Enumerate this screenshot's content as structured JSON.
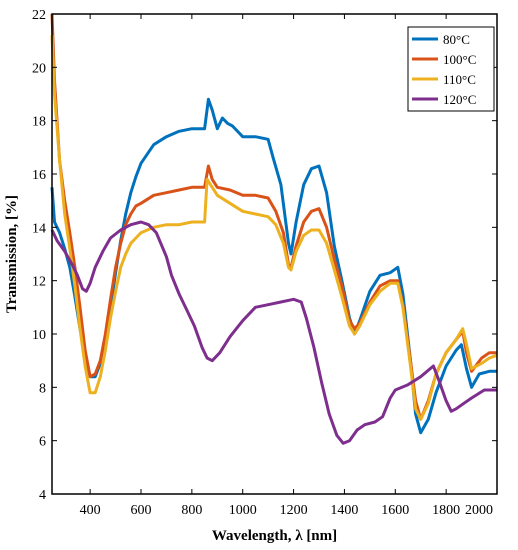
{
  "chart_data": {
    "type": "line",
    "title": "",
    "xlabel": "Wavelength, λ [nm]",
    "ylabel": "Transmission, [%]",
    "xlim": [
      250,
      2000
    ],
    "ylim": [
      4,
      22
    ],
    "xticks": [
      400,
      600,
      800,
      1000,
      1200,
      1400,
      1600,
      1800,
      2000
    ],
    "yticks": [
      4,
      6,
      8,
      10,
      12,
      14,
      16,
      18,
      20,
      22
    ],
    "grid": false,
    "legend_position": "top-right",
    "series": [
      {
        "name": "80°C",
        "color": "#0072BD",
        "points": [
          [
            250,
            15.5
          ],
          [
            260,
            14.2
          ],
          [
            280,
            13.8
          ],
          [
            300,
            13.2
          ],
          [
            320,
            12.5
          ],
          [
            340,
            11.4
          ],
          [
            360,
            10.2
          ],
          [
            380,
            9.2
          ],
          [
            400,
            8.4
          ],
          [
            420,
            8.4
          ],
          [
            440,
            8.9
          ],
          [
            460,
            9.8
          ],
          [
            480,
            11.0
          ],
          [
            500,
            12.3
          ],
          [
            520,
            13.5
          ],
          [
            540,
            14.5
          ],
          [
            560,
            15.3
          ],
          [
            580,
            15.9
          ],
          [
            600,
            16.4
          ],
          [
            650,
            17.1
          ],
          [
            700,
            17.4
          ],
          [
            750,
            17.6
          ],
          [
            800,
            17.7
          ],
          [
            850,
            17.7
          ],
          [
            865,
            18.8
          ],
          [
            880,
            18.4
          ],
          [
            900,
            17.7
          ],
          [
            920,
            18.1
          ],
          [
            940,
            17.9
          ],
          [
            960,
            17.8
          ],
          [
            1000,
            17.4
          ],
          [
            1050,
            17.4
          ],
          [
            1100,
            17.3
          ],
          [
            1120,
            16.6
          ],
          [
            1150,
            15.6
          ],
          [
            1180,
            13.4
          ],
          [
            1190,
            13.0
          ],
          [
            1210,
            14.2
          ],
          [
            1240,
            15.6
          ],
          [
            1270,
            16.2
          ],
          [
            1300,
            16.3
          ],
          [
            1330,
            15.3
          ],
          [
            1360,
            13.3
          ],
          [
            1390,
            12.0
          ],
          [
            1420,
            10.6
          ],
          [
            1440,
            10.0
          ],
          [
            1460,
            10.5
          ],
          [
            1500,
            11.6
          ],
          [
            1540,
            12.2
          ],
          [
            1580,
            12.3
          ],
          [
            1610,
            12.5
          ],
          [
            1630,
            11.5
          ],
          [
            1660,
            9.0
          ],
          [
            1680,
            7.0
          ],
          [
            1700,
            6.3
          ],
          [
            1730,
            6.8
          ],
          [
            1760,
            7.8
          ],
          [
            1800,
            8.8
          ],
          [
            1840,
            9.4
          ],
          [
            1860,
            9.6
          ],
          [
            1880,
            8.7
          ],
          [
            1900,
            8.0
          ],
          [
            1930,
            8.5
          ],
          [
            1970,
            8.6
          ],
          [
            2000,
            8.6
          ]
        ]
      },
      {
        "name": "100°C",
        "color": "#D95319",
        "points": [
          [
            250,
            22.0
          ],
          [
            260,
            19.5
          ],
          [
            280,
            16.5
          ],
          [
            300,
            15.0
          ],
          [
            320,
            13.8
          ],
          [
            340,
            12.5
          ],
          [
            360,
            11.0
          ],
          [
            380,
            9.4
          ],
          [
            400,
            8.4
          ],
          [
            420,
            8.5
          ],
          [
            440,
            9.0
          ],
          [
            460,
            10.0
          ],
          [
            480,
            11.3
          ],
          [
            500,
            12.5
          ],
          [
            520,
            13.4
          ],
          [
            540,
            14.1
          ],
          [
            560,
            14.5
          ],
          [
            580,
            14.8
          ],
          [
            600,
            14.9
          ],
          [
            650,
            15.2
          ],
          [
            700,
            15.3
          ],
          [
            750,
            15.4
          ],
          [
            800,
            15.5
          ],
          [
            850,
            15.5
          ],
          [
            865,
            16.3
          ],
          [
            880,
            15.8
          ],
          [
            900,
            15.5
          ],
          [
            950,
            15.4
          ],
          [
            1000,
            15.2
          ],
          [
            1050,
            15.2
          ],
          [
            1100,
            15.1
          ],
          [
            1130,
            14.6
          ],
          [
            1160,
            13.8
          ],
          [
            1180,
            12.6
          ],
          [
            1190,
            12.5
          ],
          [
            1210,
            13.3
          ],
          [
            1240,
            14.2
          ],
          [
            1270,
            14.6
          ],
          [
            1300,
            14.7
          ],
          [
            1330,
            14.0
          ],
          [
            1360,
            12.8
          ],
          [
            1390,
            11.8
          ],
          [
            1420,
            10.5
          ],
          [
            1440,
            10.2
          ],
          [
            1460,
            10.4
          ],
          [
            1500,
            11.2
          ],
          [
            1540,
            11.8
          ],
          [
            1580,
            12.0
          ],
          [
            1610,
            12.0
          ],
          [
            1630,
            11.1
          ],
          [
            1660,
            9.0
          ],
          [
            1680,
            7.5
          ],
          [
            1700,
            6.8
          ],
          [
            1730,
            7.5
          ],
          [
            1760,
            8.5
          ],
          [
            1800,
            9.3
          ],
          [
            1840,
            9.8
          ],
          [
            1865,
            10.1
          ],
          [
            1880,
            9.3
          ],
          [
            1900,
            8.6
          ],
          [
            1940,
            9.1
          ],
          [
            1970,
            9.3
          ],
          [
            2000,
            9.3
          ]
        ]
      },
      {
        "name": "110°C",
        "color": "#EDB120",
        "points": [
          [
            250,
            21.2
          ],
          [
            260,
            19.0
          ],
          [
            280,
            16.5
          ],
          [
            300,
            14.5
          ],
          [
            320,
            13.2
          ],
          [
            340,
            11.8
          ],
          [
            360,
            10.2
          ],
          [
            380,
            8.8
          ],
          [
            400,
            7.8
          ],
          [
            420,
            7.8
          ],
          [
            440,
            8.4
          ],
          [
            460,
            9.4
          ],
          [
            480,
            10.6
          ],
          [
            500,
            11.6
          ],
          [
            520,
            12.5
          ],
          [
            540,
            13.0
          ],
          [
            560,
            13.4
          ],
          [
            580,
            13.6
          ],
          [
            600,
            13.8
          ],
          [
            650,
            14.0
          ],
          [
            700,
            14.1
          ],
          [
            750,
            14.1
          ],
          [
            800,
            14.2
          ],
          [
            850,
            14.2
          ],
          [
            860,
            15.8
          ],
          [
            880,
            15.5
          ],
          [
            900,
            15.2
          ],
          [
            950,
            14.9
          ],
          [
            1000,
            14.6
          ],
          [
            1050,
            14.5
          ],
          [
            1100,
            14.4
          ],
          [
            1130,
            14.1
          ],
          [
            1160,
            13.4
          ],
          [
            1180,
            12.5
          ],
          [
            1190,
            12.4
          ],
          [
            1210,
            13.1
          ],
          [
            1240,
            13.7
          ],
          [
            1270,
            13.9
          ],
          [
            1300,
            13.9
          ],
          [
            1330,
            13.4
          ],
          [
            1360,
            12.4
          ],
          [
            1390,
            11.4
          ],
          [
            1420,
            10.3
          ],
          [
            1440,
            10.0
          ],
          [
            1460,
            10.3
          ],
          [
            1500,
            11.1
          ],
          [
            1540,
            11.6
          ],
          [
            1580,
            11.9
          ],
          [
            1610,
            11.9
          ],
          [
            1630,
            11.0
          ],
          [
            1660,
            8.8
          ],
          [
            1680,
            7.2
          ],
          [
            1700,
            6.8
          ],
          [
            1730,
            7.4
          ],
          [
            1760,
            8.5
          ],
          [
            1800,
            9.3
          ],
          [
            1840,
            9.8
          ],
          [
            1865,
            10.2
          ],
          [
            1880,
            9.6
          ],
          [
            1900,
            8.7
          ],
          [
            1940,
            8.9
          ],
          [
            1970,
            9.1
          ],
          [
            2000,
            9.2
          ]
        ]
      },
      {
        "name": "120°C",
        "color": "#7E2F8E",
        "points": [
          [
            250,
            13.9
          ],
          [
            270,
            13.5
          ],
          [
            300,
            13.1
          ],
          [
            330,
            12.6
          ],
          [
            350,
            12.2
          ],
          [
            370,
            11.7
          ],
          [
            385,
            11.6
          ],
          [
            400,
            11.9
          ],
          [
            420,
            12.5
          ],
          [
            450,
            13.1
          ],
          [
            480,
            13.6
          ],
          [
            520,
            13.9
          ],
          [
            560,
            14.1
          ],
          [
            600,
            14.2
          ],
          [
            630,
            14.1
          ],
          [
            660,
            13.8
          ],
          [
            700,
            12.9
          ],
          [
            720,
            12.2
          ],
          [
            750,
            11.5
          ],
          [
            780,
            10.9
          ],
          [
            810,
            10.3
          ],
          [
            840,
            9.5
          ],
          [
            860,
            9.1
          ],
          [
            880,
            9.0
          ],
          [
            910,
            9.3
          ],
          [
            950,
            9.9
          ],
          [
            1000,
            10.5
          ],
          [
            1050,
            11.0
          ],
          [
            1100,
            11.1
          ],
          [
            1150,
            11.2
          ],
          [
            1200,
            11.3
          ],
          [
            1230,
            11.2
          ],
          [
            1250,
            10.6
          ],
          [
            1280,
            9.5
          ],
          [
            1310,
            8.2
          ],
          [
            1340,
            7.0
          ],
          [
            1370,
            6.2
          ],
          [
            1395,
            5.9
          ],
          [
            1420,
            6.0
          ],
          [
            1450,
            6.4
          ],
          [
            1480,
            6.6
          ],
          [
            1520,
            6.7
          ],
          [
            1550,
            6.9
          ],
          [
            1580,
            7.6
          ],
          [
            1600,
            7.9
          ],
          [
            1650,
            8.1
          ],
          [
            1700,
            8.4
          ],
          [
            1750,
            8.8
          ],
          [
            1770,
            8.3
          ],
          [
            1800,
            7.5
          ],
          [
            1820,
            7.1
          ],
          [
            1840,
            7.2
          ],
          [
            1870,
            7.4
          ],
          [
            1900,
            7.6
          ],
          [
            1950,
            7.9
          ],
          [
            2000,
            7.9
          ]
        ]
      }
    ]
  }
}
